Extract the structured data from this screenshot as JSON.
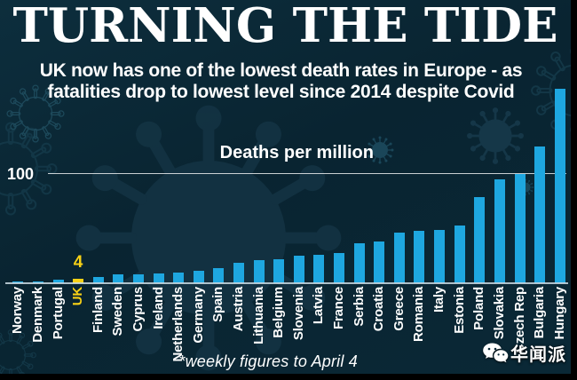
{
  "header": {
    "title": "TURNING THE TIDE",
    "subtitle_line1": "UK now has one of the lowest death rates in Europe - as",
    "subtitle_line2": "fatalities drop to lowest level since 2014 despite Covid"
  },
  "chart_data": {
    "type": "bar",
    "title": "Deaths per million",
    "categories": [
      "Norway",
      "Denmark",
      "Portugal",
      "UK",
      "Finland",
      "Sweden",
      "Cyprus",
      "Ireland",
      "Netherlands",
      "Germany",
      "Spain",
      "Austria",
      "Lithuania",
      "Belgium",
      "Slovenia",
      "Latvia",
      "France",
      "Serbia",
      "Croatia",
      "Greece",
      "Romania",
      "Italy",
      "Estonia",
      "Poland",
      "Slovakia",
      "Czech Rep",
      "Bulgaria",
      "Hungary"
    ],
    "values": [
      2,
      2,
      3,
      4,
      6,
      8,
      8,
      9,
      10,
      11,
      14,
      19,
      21,
      22,
      25,
      26,
      28,
      37,
      38,
      46,
      48,
      49,
      53,
      79,
      95,
      100,
      125,
      178
    ],
    "highlight_country": "UK",
    "highlight_value_label": "4",
    "y_tick_label": "100",
    "y_tick_value": 100,
    "ylim": [
      0,
      180
    ],
    "grid": "single horizontal line at 100, legend none",
    "footnote": "*weekly figures to April 4",
    "bar_color": "#1ea7e0",
    "highlight_color": "#f8d116"
  },
  "watermark": {
    "icon": "wechat-icon",
    "text": "华闻派"
  },
  "colors": {
    "background": "#0a2836",
    "frame": "#000000",
    "text": "#ffffff",
    "virus_decoration": "#1c4a5e"
  }
}
